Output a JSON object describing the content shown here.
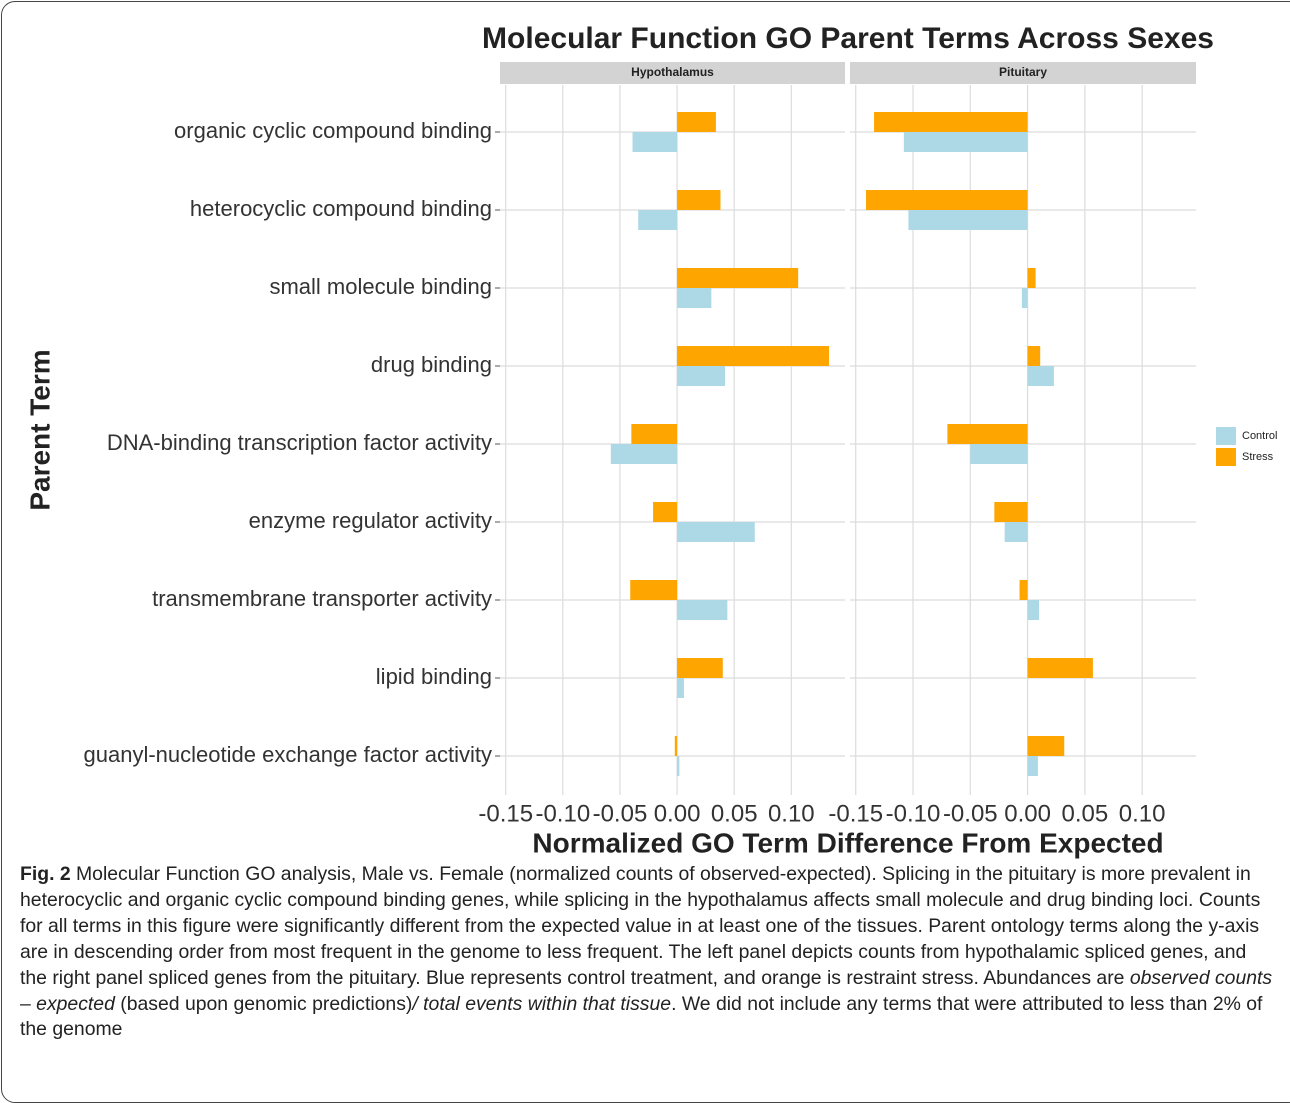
{
  "chart_data": {
    "type": "bar",
    "title": "Molecular Function GO Parent Terms Across Sexes",
    "xlabel": "Normalized GO Term Difference From Expected",
    "ylabel": "Parent Term",
    "categories": [
      "organic cyclic compound binding",
      "heterocyclic compound binding",
      "small molecule binding",
      "drug binding",
      "DNA-binding transcription factor activity",
      "enzyme regulator activity",
      "transmembrane transporter activity",
      "lipid binding",
      "guanyl-nucleotide exchange factor activity"
    ],
    "series": [
      {
        "name": "Control",
        "color": "#add8e6"
      },
      {
        "name": "Stress",
        "color": "#ffa500"
      }
    ],
    "panels": [
      {
        "name": "Hypothalamus",
        "series": [
          {
            "values": [
              -0.039,
              -0.034,
              0.03,
              0.042,
              -0.058,
              0.068,
              0.044,
              0.006,
              0.002
            ]
          },
          {
            "values": [
              0.034,
              0.038,
              0.106,
              0.133,
              -0.04,
              -0.021,
              -0.041,
              0.04,
              -0.002
            ]
          }
        ]
      },
      {
        "name": "Pituitary",
        "series": [
          {
            "values": [
              -0.108,
              -0.104,
              -0.005,
              0.023,
              -0.05,
              -0.02,
              0.01,
              0,
              0.009
            ]
          },
          {
            "values": [
              -0.134,
              -0.141,
              0.007,
              0.011,
              -0.07,
              -0.029,
              -0.007,
              0.057,
              0.032
            ]
          }
        ]
      }
    ],
    "xlim": [
      -0.155,
      0.147
    ],
    "xticks": [
      -0.15,
      {
        "value": -0.1,
        "label": "-0.10"
      },
      -0.05,
      {
        "value": 0,
        "label": "0.00"
      },
      0.05,
      {
        "value": 0.1,
        "label": "0.10"
      }
    ],
    "grid": true,
    "legend": "right"
  },
  "caption": {
    "label": "Fig. 2",
    "parts": [
      {
        "text": " Molecular Function GO analysis, Male vs. Female (normalized counts of observed-expected). Splicing in the pituitary is more prevalent in heterocyclic and organic cyclic compound binding genes, while splicing in the hypothalamus affects small molecule and drug binding loci. Counts for all terms in this figure were significantly different from the expected value in at least one of the tissues. Parent ontology terms along the y-axis are in descending order from most frequent in the genome to less frequent. The left panel depicts counts from hypothalamic spliced genes, and the right panel spliced genes from the pituitary. Blue represents control treatment, and orange is restraint stress. Abundances are ",
        "italic": false
      },
      {
        "text": "observed counts – expected",
        "italic": true
      },
      {
        "text": " (based upon genomic predictions)",
        "italic": false
      },
      {
        "text": "/ total events within that tissue",
        "italic": true
      },
      {
        "text": ". We did not include any terms that were attributed to less than 2% of the genome",
        "italic": false
      }
    ]
  }
}
